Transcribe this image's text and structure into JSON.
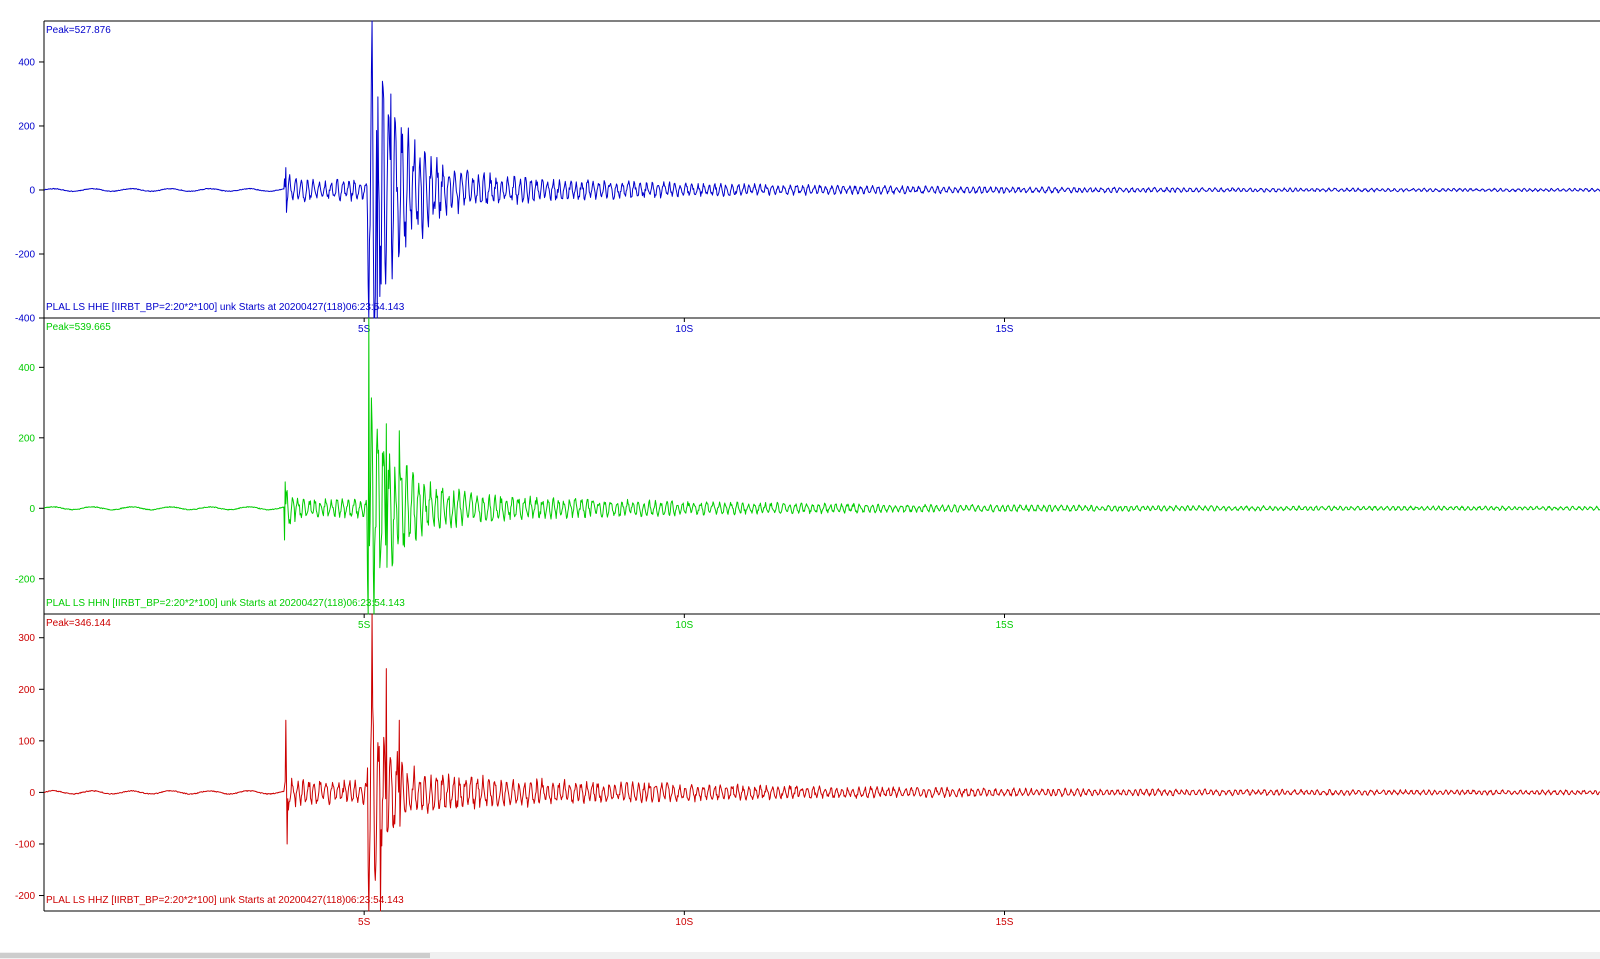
{
  "chart_data": [
    {
      "type": "line",
      "color": "#0000cc",
      "peak_label": "Peak=527.876",
      "trace_label": "PLAL LS HHE  [IIRBT_BP=2:20*2*100] unk Starts at 20200427(118)06:23:54.143",
      "ylim": [
        -400,
        528
      ],
      "yticks": [
        {
          "v": 400,
          "label": "400"
        },
        {
          "v": 200,
          "label": "200"
        },
        {
          "v": 0,
          "label": "0"
        },
        {
          "v": -200,
          "label": "-200"
        },
        {
          "v": -400,
          "label": "-400"
        }
      ],
      "xlim": [
        0,
        24.3
      ],
      "xticks": [
        {
          "v": 5,
          "label": "5S"
        },
        {
          "v": 10,
          "label": "10S"
        },
        {
          "v": 15,
          "label": "15S"
        }
      ],
      "waveform": {
        "pre": 4,
        "p_onset": 3.75,
        "p_amp": 70,
        "p_dur": 1.2,
        "s_onset": 5.05,
        "s_amp": 500,
        "coda_amp": 55,
        "decay": 0.5,
        "tail": 4,
        "seed": 11
      },
      "series": [
        {
          "x": [
            3.78,
            5.12,
            5.2,
            5.3,
            5.42
          ],
          "y": [
            70,
            528,
            -400,
            320,
            300
          ]
        }
      ]
    },
    {
      "type": "line",
      "color": "#00cc00",
      "peak_label": "Peak=539.665",
      "trace_label": "PLAL LS HHN  [IIRBT_BP=2:20*2*100] unk Starts at 20200427(118)06:23:54.143",
      "ylim": [
        -300,
        540
      ],
      "yticks": [
        {
          "v": 400,
          "label": "400"
        },
        {
          "v": 200,
          "label": "200"
        },
        {
          "v": 0,
          "label": "0"
        },
        {
          "v": -200,
          "label": "-200"
        }
      ],
      "xlim": [
        0,
        24.3
      ],
      "xticks": [
        {
          "v": 5,
          "label": "5S"
        },
        {
          "v": 10,
          "label": "10S"
        },
        {
          "v": 15,
          "label": "15S"
        }
      ],
      "waveform": {
        "pre": 4,
        "p_onset": 3.75,
        "p_amp": 70,
        "p_dur": 1.2,
        "s_onset": 5.05,
        "s_amp": 300,
        "coda_amp": 45,
        "decay": 0.45,
        "tail": 5,
        "seed": 23
      },
      "series": [
        {
          "x": [
            3.77,
            5.07,
            5.15,
            5.35,
            5.55
          ],
          "y": [
            75,
            540,
            -300,
            240,
            220
          ]
        }
      ]
    },
    {
      "type": "line",
      "color": "#cc0000",
      "peak_label": "Peak=346.144",
      "trace_label": "PLAL LS HHZ  [IIRBT_BP=2:20*2*100] unk Starts at 20200427(118)06:23:54.143",
      "ylim": [
        -230,
        346
      ],
      "yticks": [
        {
          "v": 300,
          "label": "300"
        },
        {
          "v": 200,
          "label": "200"
        },
        {
          "v": 100,
          "label": "100"
        },
        {
          "v": 0,
          "label": "0"
        },
        {
          "v": -100,
          "label": "-100"
        },
        {
          "v": -200,
          "label": "-200"
        }
      ],
      "xlim": [
        0,
        24.3
      ],
      "xticks": [
        {
          "v": 5,
          "label": "5S"
        },
        {
          "v": 10,
          "label": "10S"
        },
        {
          "v": 15,
          "label": "15S"
        }
      ],
      "waveform": {
        "pre": 3,
        "p_onset": 3.75,
        "p_amp": 45,
        "p_dur": 1.3,
        "s_onset": 5.05,
        "s_amp": 200,
        "coda_amp": 40,
        "decay": 0.28,
        "tail": 4,
        "seed": 37
      },
      "series": [
        {
          "x": [
            3.78,
            3.8,
            5.12,
            5.25,
            5.35,
            5.55
          ],
          "y": [
            140,
            -100,
            346,
            -230,
            240,
            140
          ]
        }
      ]
    }
  ]
}
